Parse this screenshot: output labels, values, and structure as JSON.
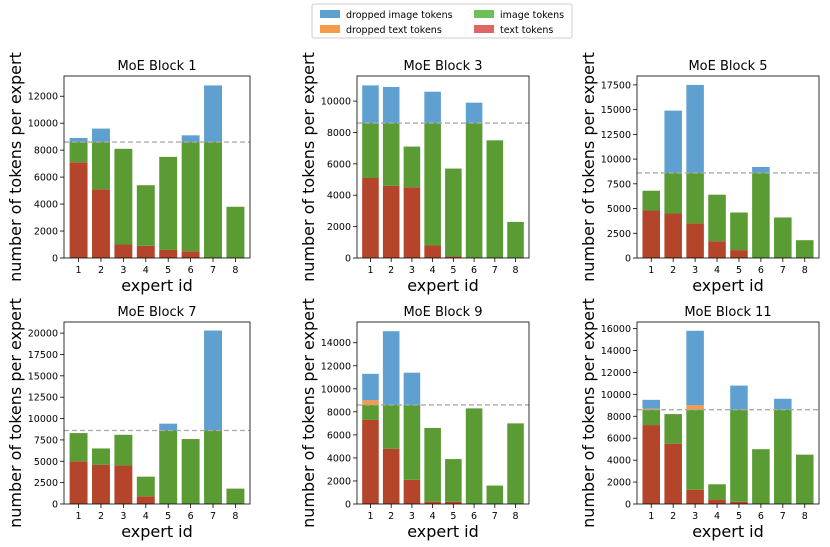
{
  "colors": {
    "dropped_image": "#5fa0d0",
    "dropped_text": "#f79a4a",
    "image": "#5b9b33",
    "text": "#b5452a",
    "capacity_line": "#aaaaaa"
  },
  "legend": [
    {
      "label": "dropped image tokens",
      "color": "#5fa0d0"
    },
    {
      "label": "dropped text tokens",
      "color": "#f79a4a"
    },
    {
      "label": "image tokens",
      "color": "#6cbf5a"
    },
    {
      "label": "text tokens",
      "color": "#e06666"
    }
  ],
  "chart_data": [
    {
      "type": "bar",
      "title": "MoE Block 1",
      "xlabel": "expert id",
      "ylabel": "number of tokens per expert",
      "categories": [
        "1",
        "2",
        "3",
        "4",
        "5",
        "6",
        "7",
        "8"
      ],
      "capacity": 8600,
      "ylim": [
        0,
        13500
      ],
      "yticks": [
        0,
        2000,
        4000,
        6000,
        8000,
        10000,
        12000
      ],
      "series": [
        {
          "name": "text tokens",
          "values": [
            7100,
            5100,
            1000,
            900,
            600,
            500,
            0,
            0
          ]
        },
        {
          "name": "image tokens",
          "values": [
            1500,
            3500,
            7100,
            4500,
            6900,
            8100,
            8600,
            3800
          ]
        },
        {
          "name": "dropped text tokens",
          "values": [
            0,
            0,
            0,
            0,
            0,
            0,
            0,
            0
          ]
        },
        {
          "name": "dropped image tokens",
          "values": [
            300,
            1000,
            0,
            0,
            0,
            500,
            4200,
            0
          ]
        }
      ]
    },
    {
      "type": "bar",
      "title": "MoE Block 3",
      "xlabel": "expert id",
      "ylabel": "number of tokens per expert",
      "categories": [
        "1",
        "2",
        "3",
        "4",
        "5",
        "6",
        "7",
        "8"
      ],
      "capacity": 8600,
      "ylim": [
        0,
        11600
      ],
      "yticks": [
        0,
        2000,
        4000,
        6000,
        8000,
        10000
      ],
      "series": [
        {
          "name": "text tokens",
          "values": [
            5100,
            4600,
            4500,
            800,
            100,
            0,
            0,
            0
          ]
        },
        {
          "name": "image tokens",
          "values": [
            3500,
            4000,
            2600,
            7800,
            5600,
            8600,
            7500,
            2300
          ]
        },
        {
          "name": "dropped text tokens",
          "values": [
            0,
            0,
            0,
            0,
            0,
            0,
            0,
            0
          ]
        },
        {
          "name": "dropped image tokens",
          "values": [
            2400,
            2300,
            0,
            2000,
            0,
            1300,
            0,
            0
          ]
        }
      ]
    },
    {
      "type": "bar",
      "title": "MoE Block 5",
      "xlabel": "expert id",
      "ylabel": "number of tokens per expert",
      "categories": [
        "1",
        "2",
        "3",
        "4",
        "5",
        "6",
        "7",
        "8"
      ],
      "capacity": 8600,
      "ylim": [
        0,
        18400
      ],
      "yticks": [
        0,
        2500,
        5000,
        7500,
        10000,
        12500,
        15000,
        17500
      ],
      "series": [
        {
          "name": "text tokens",
          "values": [
            4800,
            4500,
            3500,
            1700,
            800,
            0,
            0,
            0
          ]
        },
        {
          "name": "image tokens",
          "values": [
            2000,
            4100,
            5100,
            4700,
            3800,
            8600,
            4100,
            1800
          ]
        },
        {
          "name": "dropped text tokens",
          "values": [
            0,
            0,
            0,
            0,
            0,
            0,
            0,
            0
          ]
        },
        {
          "name": "dropped image tokens",
          "values": [
            0,
            6300,
            8900,
            0,
            0,
            600,
            0,
            0
          ]
        }
      ]
    },
    {
      "type": "bar",
      "title": "MoE Block 7",
      "xlabel": "expert id",
      "ylabel": "number of tokens per expert",
      "categories": [
        "1",
        "2",
        "3",
        "4",
        "5",
        "6",
        "7",
        "8"
      ],
      "capacity": 8600,
      "ylim": [
        0,
        21300
      ],
      "yticks": [
        0,
        2500,
        5000,
        7500,
        10000,
        12500,
        15000,
        17500,
        20000
      ],
      "series": [
        {
          "name": "text tokens",
          "values": [
            5000,
            4600,
            4500,
            900,
            0,
            0,
            0,
            0
          ]
        },
        {
          "name": "image tokens",
          "values": [
            3300,
            1900,
            3600,
            2300,
            8600,
            7600,
            8600,
            1800
          ]
        },
        {
          "name": "dropped text tokens",
          "values": [
            0,
            0,
            0,
            0,
            0,
            0,
            0,
            0
          ]
        },
        {
          "name": "dropped image tokens",
          "values": [
            0,
            0,
            0,
            0,
            800,
            0,
            11700,
            0
          ]
        }
      ]
    },
    {
      "type": "bar",
      "title": "MoE Block 9",
      "xlabel": "expert id",
      "ylabel": "number of tokens per expert",
      "categories": [
        "1",
        "2",
        "3",
        "4",
        "5",
        "6",
        "7",
        "8"
      ],
      "capacity": 8600,
      "ylim": [
        0,
        15800
      ],
      "yticks": [
        0,
        2000,
        4000,
        6000,
        8000,
        10000,
        12000,
        14000
      ],
      "series": [
        {
          "name": "text tokens",
          "values": [
            7300,
            4800,
            2100,
            200,
            200,
            0,
            0,
            0
          ]
        },
        {
          "name": "image tokens",
          "values": [
            1300,
            3800,
            6500,
            6400,
            3700,
            8300,
            1600,
            7000
          ]
        },
        {
          "name": "dropped text tokens",
          "values": [
            400,
            0,
            0,
            0,
            0,
            0,
            0,
            0
          ]
        },
        {
          "name": "dropped image tokens",
          "values": [
            2300,
            6400,
            2800,
            0,
            0,
            0,
            0,
            0
          ]
        }
      ]
    },
    {
      "type": "bar",
      "title": "MoE Block 11",
      "xlabel": "expert id",
      "ylabel": "number of tokens per expert",
      "categories": [
        "1",
        "2",
        "3",
        "4",
        "5",
        "6",
        "7",
        "8"
      ],
      "capacity": 8600,
      "ylim": [
        0,
        16600
      ],
      "yticks": [
        0,
        2000,
        4000,
        6000,
        8000,
        10000,
        12000,
        14000,
        16000
      ],
      "series": [
        {
          "name": "text tokens",
          "values": [
            7200,
            5500,
            1300,
            400,
            200,
            0,
            0,
            0
          ]
        },
        {
          "name": "image tokens",
          "values": [
            1400,
            2700,
            7300,
            1400,
            8400,
            5000,
            8600,
            4500
          ]
        },
        {
          "name": "dropped text tokens",
          "values": [
            100,
            0,
            400,
            0,
            0,
            0,
            0,
            0
          ]
        },
        {
          "name": "dropped image tokens",
          "values": [
            800,
            0,
            6800,
            0,
            2200,
            0,
            1000,
            0
          ]
        }
      ]
    }
  ]
}
